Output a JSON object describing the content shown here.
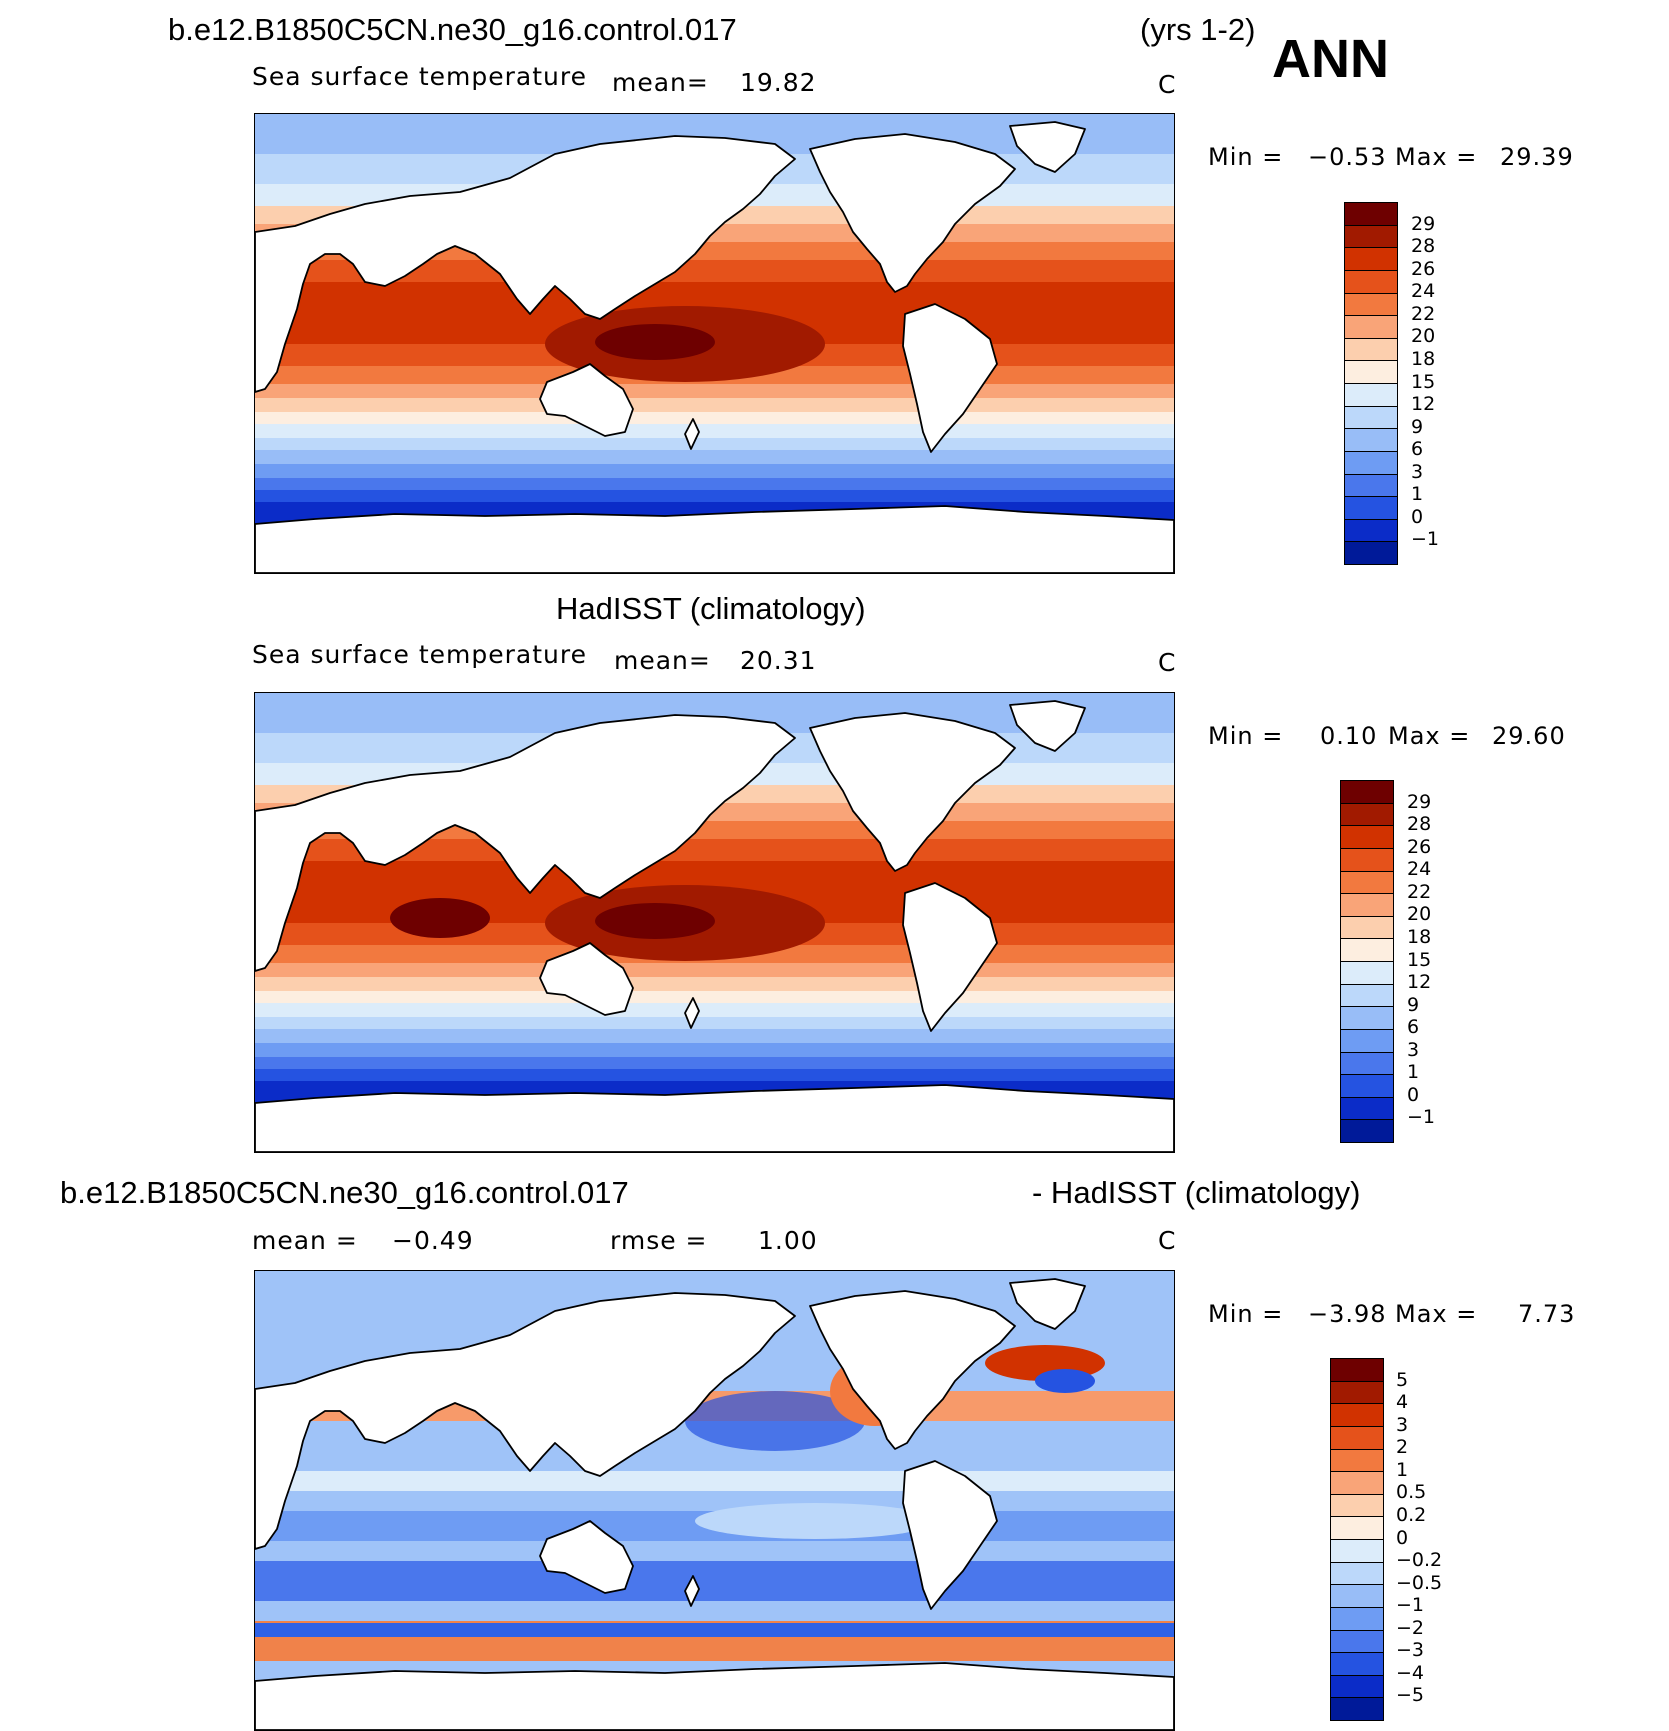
{
  "header": {
    "case_name": "b.e12.B1850C5CN.ne30_g16.control.017",
    "years": "(yrs 1-2)",
    "season": "ANN"
  },
  "panels": [
    {
      "id": "model",
      "title": "",
      "variable": "Sea surface temperature",
      "mean_label": "mean=",
      "mean_value": "19.82",
      "units": "C",
      "min_label": "Min =",
      "min_value": "−0.53",
      "max_label": "Max =",
      "max_value": "29.39"
    },
    {
      "id": "obs",
      "title": "HadISST (climatology)",
      "variable": "Sea surface temperature",
      "mean_label": "mean=",
      "mean_value": "20.31",
      "units": "C",
      "min_label": "Min =",
      "min_value": "0.10",
      "max_label": "Max =",
      "max_value": "29.60"
    },
    {
      "id": "diff",
      "title_left": "b.e12.B1850C5CN.ne30_g16.control.017",
      "title_right": "- HadISST (climatology)",
      "mean_label": "mean =",
      "mean_value": "−0.49",
      "rmse_label": "rmse =",
      "rmse_value": "1.00",
      "units": "C",
      "min_label": "Min =",
      "min_value": "−3.98",
      "max_label": "Max =",
      "max_value": "7.73"
    }
  ],
  "chart_data": [
    {
      "type": "heatmap",
      "title": "Sea surface temperature",
      "subtitle": "b.e12.B1850C5CN.ne30_g16.control.017 (yrs 1-2) ANN",
      "units": "C",
      "mean": 19.82,
      "min": -0.53,
      "max": 29.39,
      "colorbar_labels": [
        "29",
        "28",
        "26",
        "24",
        "22",
        "20",
        "18",
        "15",
        "12",
        "9",
        "6",
        "3",
        "1",
        "0",
        "−1"
      ],
      "colors": [
        "#6e0000",
        "#a11a00",
        "#d13200",
        "#e5521b",
        "#f2793f",
        "#f9a478",
        "#fccfae",
        "#fdeee0",
        "#dcecfa",
        "#bcd8fa",
        "#98bdf7",
        "#6e9cf3",
        "#4a77ec",
        "#2553e1",
        "#0b2cc8",
        "#001a99"
      ]
    },
    {
      "type": "heatmap",
      "title": "Sea surface temperature",
      "subtitle": "HadISST (climatology)",
      "units": "C",
      "mean": 20.31,
      "min": 0.1,
      "max": 29.6,
      "colorbar_labels": [
        "29",
        "28",
        "26",
        "24",
        "22",
        "20",
        "18",
        "15",
        "12",
        "9",
        "6",
        "3",
        "1",
        "0",
        "−1"
      ],
      "colors": [
        "#6e0000",
        "#a11a00",
        "#d13200",
        "#e5521b",
        "#f2793f",
        "#f9a478",
        "#fccfae",
        "#fdeee0",
        "#dcecfa",
        "#bcd8fa",
        "#98bdf7",
        "#6e9cf3",
        "#4a77ec",
        "#2553e1",
        "#0b2cc8",
        "#001a99"
      ]
    },
    {
      "type": "heatmap",
      "title": "b.e12.B1850C5CN.ne30_g16.control.017 - HadISST (climatology)",
      "units": "C",
      "mean": -0.49,
      "rmse": 1.0,
      "min": -3.98,
      "max": 7.73,
      "colorbar_labels": [
        "5",
        "4",
        "3",
        "2",
        "1",
        "0.5",
        "0.2",
        "0",
        "−0.2",
        "−0.5",
        "−1",
        "−2",
        "−3",
        "−4",
        "−5"
      ],
      "colors": [
        "#6e0000",
        "#a11a00",
        "#d13200",
        "#e5521b",
        "#f2793f",
        "#f9a478",
        "#fccfae",
        "#fdeee0",
        "#dcecfa",
        "#bcd8fa",
        "#98bdf7",
        "#6e9cf3",
        "#4a77ec",
        "#2553e1",
        "#0b2cc8",
        "#001a99"
      ]
    }
  ]
}
